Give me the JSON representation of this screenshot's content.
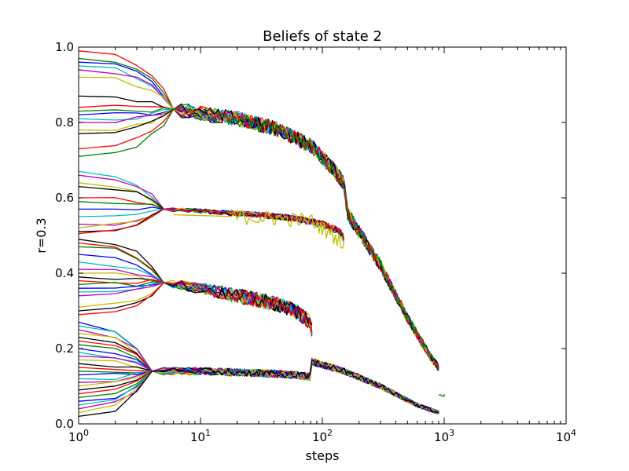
{
  "chart_data": {
    "type": "line",
    "title": "Beliefs of state 2",
    "xlabel": "steps",
    "ylabel": "r=0.3",
    "xscale": "log",
    "xlim": [
      1,
      10000
    ],
    "ylim": [
      0,
      1.0
    ],
    "grid": false,
    "legend": "none",
    "x_ticks": [
      {
        "base": "10",
        "exp": "0"
      },
      {
        "base": "10",
        "exp": "1"
      },
      {
        "base": "10",
        "exp": "2"
      },
      {
        "base": "10",
        "exp": "3"
      },
      {
        "base": "10",
        "exp": "4"
      }
    ],
    "y_ticks": [
      "0.0",
      "0.2",
      "0.4",
      "0.6",
      "0.8",
      "1.0"
    ],
    "colors": [
      "#ff0000",
      "#008000",
      "#0000ff",
      "#00bfbf",
      "#bf00bf",
      "#bfbf00",
      "#000000"
    ],
    "groups": [
      {
        "start_values": [
          0.99,
          0.97,
          0.96,
          0.95,
          0.94,
          0.92,
          0.87,
          0.84,
          0.83,
          0.82,
          0.81,
          0.8,
          0.78,
          0.77,
          0.73,
          0.71
        ],
        "converge_step": 6,
        "converge_value": 0.835,
        "path": [
          [
            6,
            0.835
          ],
          [
            10,
            0.825
          ],
          [
            20,
            0.81
          ],
          [
            40,
            0.785
          ],
          [
            80,
            0.74
          ],
          [
            120,
            0.68
          ],
          [
            150,
            0.64
          ],
          [
            160,
            0.56
          ],
          [
            300,
            0.42
          ],
          [
            500,
            0.28
          ],
          [
            800,
            0.17
          ],
          [
            900,
            0.15
          ]
        ],
        "noise": [
          [
            6,
            0.02
          ],
          [
            40,
            0.02
          ],
          [
            150,
            0.02
          ],
          [
            900,
            0.01
          ]
        ]
      },
      {
        "start_values": [
          0.67,
          0.66,
          0.64,
          0.63,
          0.6,
          0.59,
          0.57,
          0.55,
          0.53,
          0.52,
          0.51,
          0.505
        ],
        "converge_step": 5,
        "converge_value": 0.57,
        "path": [
          [
            5,
            0.57
          ],
          [
            10,
            0.565
          ],
          [
            30,
            0.555
          ],
          [
            60,
            0.545
          ],
          [
            100,
            0.53
          ],
          [
            140,
            0.51
          ],
          [
            150,
            0.49
          ]
        ],
        "noise": [
          [
            5,
            0.005
          ],
          [
            150,
            0.01
          ]
        ],
        "outlier": {
          "color": "#bfbf00",
          "path": [
            [
              6,
              0.555
            ],
            [
              20,
              0.55
            ],
            [
              40,
              0.545
            ],
            [
              80,
              0.54
            ],
            [
              150,
              0.48
            ]
          ],
          "noise": 0.02
        }
      },
      {
        "start_values": [
          0.49,
          0.48,
          0.47,
          0.45,
          0.43,
          0.41,
          0.4,
          0.39,
          0.38,
          0.37,
          0.36,
          0.35,
          0.34,
          0.31,
          0.3,
          0.29
        ],
        "converge_step": 5,
        "converge_value": 0.375,
        "path": [
          [
            5,
            0.375
          ],
          [
            10,
            0.36
          ],
          [
            20,
            0.34
          ],
          [
            40,
            0.32
          ],
          [
            60,
            0.3
          ],
          [
            80,
            0.27
          ],
          [
            82,
            0.25
          ]
        ],
        "noise": [
          [
            5,
            0.01
          ],
          [
            20,
            0.02
          ],
          [
            82,
            0.02
          ]
        ]
      },
      {
        "start_values": [
          0.27,
          0.26,
          0.25,
          0.24,
          0.23,
          0.22,
          0.21,
          0.2,
          0.19,
          0.18,
          0.17,
          0.16,
          0.15,
          0.14,
          0.13,
          0.12,
          0.11,
          0.1,
          0.09,
          0.08,
          0.07,
          0.06,
          0.05,
          0.04,
          0.03,
          0.02
        ],
        "converge_step": 4,
        "converge_value": 0.14,
        "path": [
          [
            4,
            0.14
          ],
          [
            10,
            0.14
          ],
          [
            30,
            0.135
          ],
          [
            60,
            0.13
          ],
          [
            80,
            0.125
          ],
          [
            82,
            0.165
          ],
          [
            150,
            0.14
          ],
          [
            300,
            0.1
          ],
          [
            600,
            0.05
          ],
          [
            900,
            0.03
          ]
        ],
        "noise": [
          [
            4,
            0.01
          ],
          [
            82,
            0.01
          ],
          [
            900,
            0.005
          ]
        ]
      }
    ],
    "tail": {
      "x_range": [
        900,
        1000
      ],
      "y": 0.075,
      "color": "#008000"
    }
  }
}
